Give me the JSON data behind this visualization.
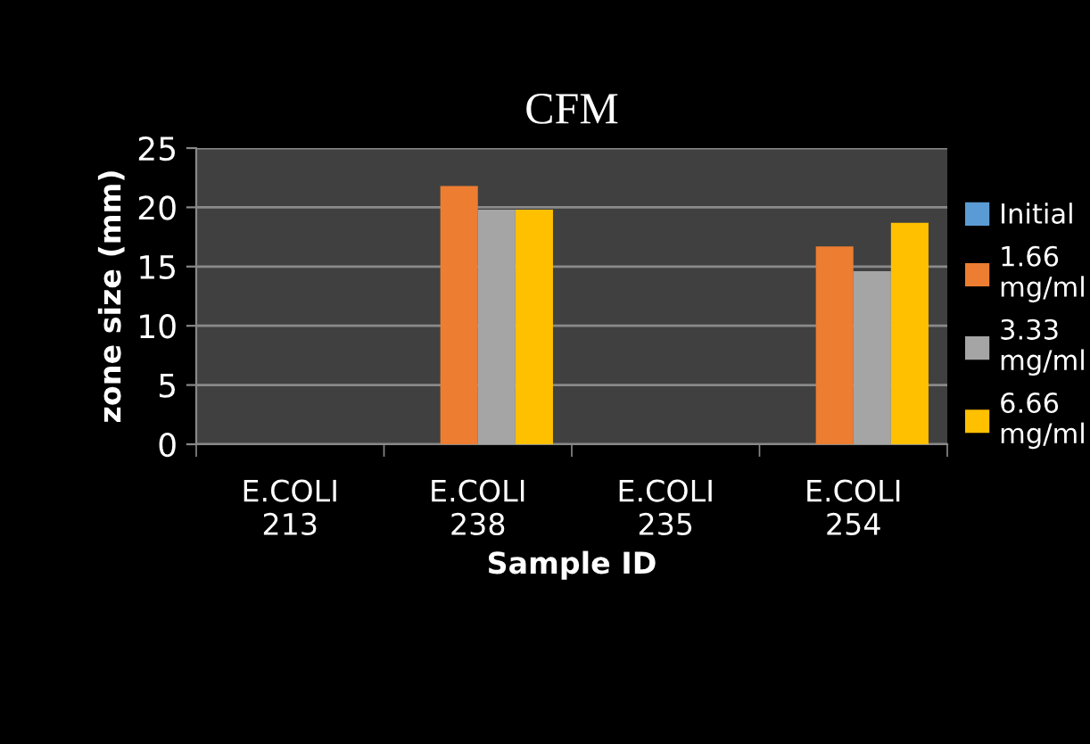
{
  "chart_data": {
    "type": "bar",
    "title": "CFM",
    "xlabel": "Sample ID",
    "ylabel": "zone size (mm)",
    "categories": [
      "E.COLI\n213",
      "E.COLI\n238",
      "E.COLI\n235",
      "E.COLI\n254"
    ],
    "series": [
      {
        "name": "Initial",
        "color": "#5b9bd5",
        "values": [
          null,
          null,
          null,
          null
        ]
      },
      {
        "name": "1.66 mg/ml",
        "color": "#ed7d31",
        "values": [
          null,
          21.8,
          null,
          16.7
        ]
      },
      {
        "name": "3.33 mg/ml",
        "color": "#a5a5a5",
        "values": [
          null,
          19.8,
          null,
          14.6
        ]
      },
      {
        "name": "6.66 mg/ml",
        "color": "#ffc000",
        "values": [
          null,
          19.8,
          null,
          18.7
        ]
      }
    ],
    "ylim": [
      0,
      25
    ],
    "yticks": [
      0,
      5,
      10,
      15,
      20,
      25
    ],
    "grid": "y",
    "legend": "right"
  }
}
